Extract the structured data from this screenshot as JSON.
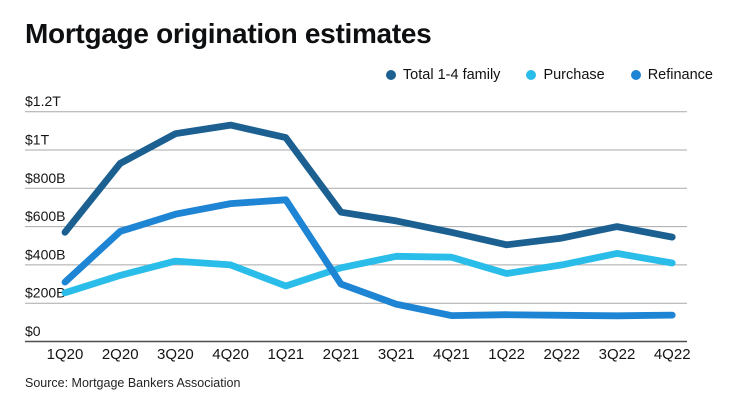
{
  "header": {
    "title": "Mortgage origination estimates"
  },
  "source": {
    "text": "Source: Mortgage Bankers Association"
  },
  "chart_data": {
    "type": "line",
    "title": "Mortgage origination estimates",
    "units": "USD, T = trillions, B = billions",
    "categories": [
      "1Q20",
      "2Q20",
      "3Q20",
      "4Q20",
      "1Q21",
      "2Q21",
      "3Q21",
      "4Q21",
      "1Q22",
      "2Q22",
      "3Q22",
      "4Q22"
    ],
    "series": [
      {
        "name": "Total 1-4 family",
        "color": "#1c6092",
        "values": [
          570,
          930,
          1085,
          1130,
          1065,
          675,
          630,
          570,
          505,
          540,
          600,
          545
        ]
      },
      {
        "name": "Purchase",
        "color": "#2bbde9",
        "values": [
          255,
          345,
          420,
          400,
          290,
          385,
          445,
          440,
          355,
          400,
          460,
          410
        ]
      },
      {
        "name": "Refinance",
        "color": "#1e84d4",
        "values": [
          310,
          575,
          665,
          720,
          740,
          300,
          195,
          135,
          140,
          137,
          134,
          138
        ]
      }
    ],
    "y_ticks": [
      {
        "value": 1200,
        "label": "$1.2T"
      },
      {
        "value": 1000,
        "label": "$1T"
      },
      {
        "value": 800,
        "label": "$800B"
      },
      {
        "value": 600,
        "label": "$600B"
      },
      {
        "value": 400,
        "label": "$400B"
      },
      {
        "value": 200,
        "label": "$200B"
      },
      {
        "value": 0,
        "label": "$0"
      }
    ],
    "ylim": [
      0,
      1200
    ],
    "grid": true,
    "legend_position": "top-right",
    "xlabel": "",
    "ylabel": ""
  }
}
